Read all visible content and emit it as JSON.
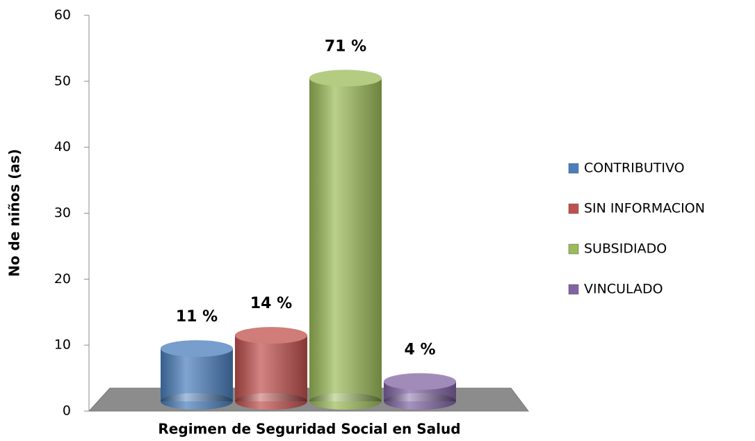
{
  "chart_data": {
    "type": "bar3d",
    "y_label": "No de niños (as)",
    "x_label": "Regimen de Seguridad  Social  en Salud",
    "ylim": [
      0,
      60
    ],
    "yticks": [
      0,
      10,
      20,
      30,
      40,
      50,
      60
    ],
    "legend": "right",
    "series": [
      {
        "name": "CONTRIBUTIVO",
        "color": "#4a7ebb",
        "values": [
          8
        ],
        "annotation": "11 %"
      },
      {
        "name": "SIN INFORMACION",
        "color": "#c0504d",
        "values": [
          10
        ],
        "annotation": "14 %"
      },
      {
        "name": "SUBSIDIADO",
        "color": "#9bbb59",
        "values": [
          49
        ],
        "annotation": "71 %"
      },
      {
        "name": "VINCULADO",
        "color": "#8064a2",
        "values": [
          3
        ],
        "annotation": "4 %"
      }
    ]
  }
}
